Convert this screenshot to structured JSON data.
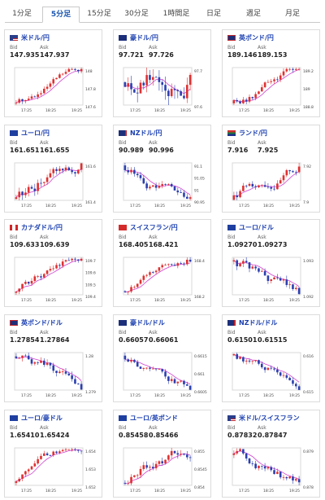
{
  "tabs": [
    {
      "label": "1分足",
      "active": false
    },
    {
      "label": "5分足",
      "active": true
    },
    {
      "label": "15分足",
      "active": false
    },
    {
      "label": "30分足",
      "active": false
    },
    {
      "label": "1時間足",
      "active": false
    },
    {
      "label": "日足",
      "active": false
    },
    {
      "label": "週足",
      "active": false
    },
    {
      "label": "月足",
      "active": false
    }
  ],
  "labels": {
    "bid": "Bid",
    "ask": "Ask"
  },
  "colors": {
    "up": "#e03030",
    "down": "#2a3fb0",
    "ma": "#d040d0",
    "pair": "#1a3fb0",
    "accent": "#1a55b0"
  },
  "pairs": [
    {
      "name": "米ドル/円",
      "flag": "us-flag",
      "bid": "147.935",
      "ask": "147.937",
      "chart_data": {
        "type": "candlestick",
        "x_ticks": [
          "17:25",
          "18:25",
          "19:25"
        ],
        "y_ticks": [
          "148",
          "147.8",
          "147.6"
        ],
        "trend": "up"
      }
    },
    {
      "name": "豪ドル/円",
      "flag": "au-flag",
      "bid": "97.721",
      "ask": "97.726",
      "chart_data": {
        "type": "candlestick",
        "x_ticks": [
          "17:25",
          "18:25",
          "19:25"
        ],
        "y_ticks": [
          "97.7",
          "97.6"
        ],
        "trend": "up"
      }
    },
    {
      "name": "英ポンド/円",
      "flag": "gb-flag",
      "bid": "189.146",
      "ask": "189.153",
      "chart_data": {
        "type": "candlestick",
        "x_ticks": [
          "17:25",
          "18:25",
          "19:25"
        ],
        "y_ticks": [
          "189.2",
          "189",
          "188.8"
        ],
        "trend": "up"
      }
    },
    {
      "name": "ユーロ/円",
      "flag": "eu-flag",
      "bid": "161.651",
      "ask": "161.655",
      "chart_data": {
        "type": "candlestick",
        "x_ticks": [
          "17:25",
          "18:25",
          "19:25"
        ],
        "y_ticks": [
          "161.6",
          "161.4"
        ],
        "trend": "up"
      }
    },
    {
      "name": "NZドル/円",
      "flag": "nz-flag",
      "bid": "90.989",
      "ask": "90.996",
      "chart_data": {
        "type": "candlestick",
        "x_ticks": [
          "17:25",
          "18:25",
          "19:25"
        ],
        "y_ticks": [
          "91.1",
          "91.05",
          "91",
          "90.95"
        ],
        "trend": "down"
      }
    },
    {
      "name": "ランド/円",
      "flag": "za-flag",
      "bid": "7.916",
      "ask": "7.925",
      "chart_data": {
        "type": "candlestick",
        "x_ticks": [
          "17:25",
          "18:25",
          "19:25"
        ],
        "y_ticks": [
          "7.92",
          "7.9"
        ],
        "trend": "up"
      }
    },
    {
      "name": "カナダドル/円",
      "flag": "ca-flag",
      "bid": "109.633",
      "ask": "109.639",
      "chart_data": {
        "type": "candlestick",
        "x_ticks": [
          "17:25",
          "18:25",
          "19:25"
        ],
        "y_ticks": [
          "109.7",
          "109.6",
          "109.5",
          "109.4"
        ],
        "trend": "up"
      }
    },
    {
      "name": "スイスフラン/円",
      "flag": "ch-flag",
      "bid": "168.405",
      "ask": "168.421",
      "chart_data": {
        "type": "candlestick",
        "x_ticks": [
          "17:25",
          "18:25",
          "19:25"
        ],
        "y_ticks": [
          "168.4",
          "168.2"
        ],
        "trend": "up"
      }
    },
    {
      "name": "ユーロ/ドル",
      "flag": "eu-flag",
      "bid": "1.09270",
      "ask": "1.09273",
      "chart_data": {
        "type": "candlestick",
        "x_ticks": [
          "17:25",
          "18:25",
          "19:25"
        ],
        "y_ticks": [
          "1.093",
          "1.092"
        ],
        "trend": "down"
      }
    },
    {
      "name": "英ポンド/ドル",
      "flag": "gb-flag",
      "bid": "1.27854",
      "ask": "1.27864",
      "chart_data": {
        "type": "candlestick",
        "x_ticks": [
          "17:25",
          "18:25",
          "19:25"
        ],
        "y_ticks": [
          "1.28",
          "1.279"
        ],
        "trend": "down"
      }
    },
    {
      "name": "豪ドル/ドル",
      "flag": "au-flag",
      "bid": "0.66057",
      "ask": "0.66061",
      "chart_data": {
        "type": "candlestick",
        "x_ticks": [
          "17:25",
          "18:25",
          "19:25"
        ],
        "y_ticks": [
          "0.6615",
          "0.661",
          "0.6605"
        ],
        "trend": "down"
      }
    },
    {
      "name": "NZドル/ドル",
      "flag": "nz-flag",
      "bid": "0.61501",
      "ask": "0.61515",
      "chart_data": {
        "type": "candlestick",
        "x_ticks": [
          "17:25",
          "18:25",
          "19:25"
        ],
        "y_ticks": [
          "0.616",
          "0.615"
        ],
        "trend": "down"
      }
    },
    {
      "name": "ユーロ/豪ドル",
      "flag": "eu-flag",
      "bid": "1.65410",
      "ask": "1.65424",
      "chart_data": {
        "type": "candlestick",
        "x_ticks": [
          "17:25",
          "18:25",
          "19:25"
        ],
        "y_ticks": [
          "1.654",
          "1.653",
          "1.652"
        ],
        "trend": "up"
      }
    },
    {
      "name": "ユーロ/英ポンド",
      "flag": "eu-flag",
      "bid": "0.85458",
      "ask": "0.85466",
      "chart_data": {
        "type": "candlestick",
        "x_ticks": [
          "17:25",
          "18:25",
          "19:25"
        ],
        "y_ticks": [
          "0.855",
          "0.8545",
          "0.854"
        ],
        "trend": "up"
      }
    },
    {
      "name": "米ドル/スイスフラン",
      "flag": "us-flag",
      "bid": "0.87832",
      "ask": "0.87847",
      "chart_data": {
        "type": "candlestick",
        "x_ticks": [
          "17:25",
          "18:25",
          "19:25"
        ],
        "y_ticks": [
          "0.879",
          "0.878"
        ],
        "trend": "down"
      }
    }
  ]
}
